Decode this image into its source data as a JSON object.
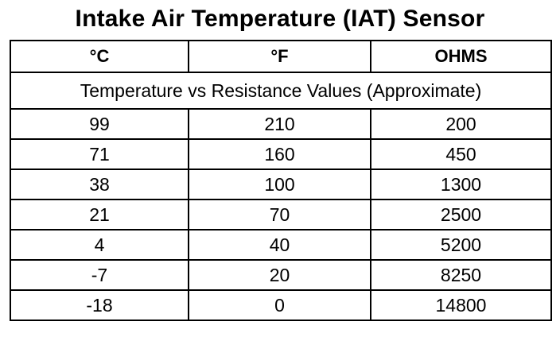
{
  "title": "Intake Air Temperature (IAT) Sensor",
  "table": {
    "columns": [
      "°C",
      "°F",
      "OHMS"
    ],
    "subheader": "Temperature vs Resistance Values (Approximate)",
    "rows": [
      [
        "99",
        "210",
        "200"
      ],
      [
        "71",
        "160",
        "450"
      ],
      [
        "38",
        "100",
        "1300"
      ],
      [
        "21",
        "70",
        "2500"
      ],
      [
        "4",
        "40",
        "5200"
      ],
      [
        "-7",
        "20",
        "8250"
      ],
      [
        "-18",
        "0",
        "14800"
      ]
    ]
  }
}
